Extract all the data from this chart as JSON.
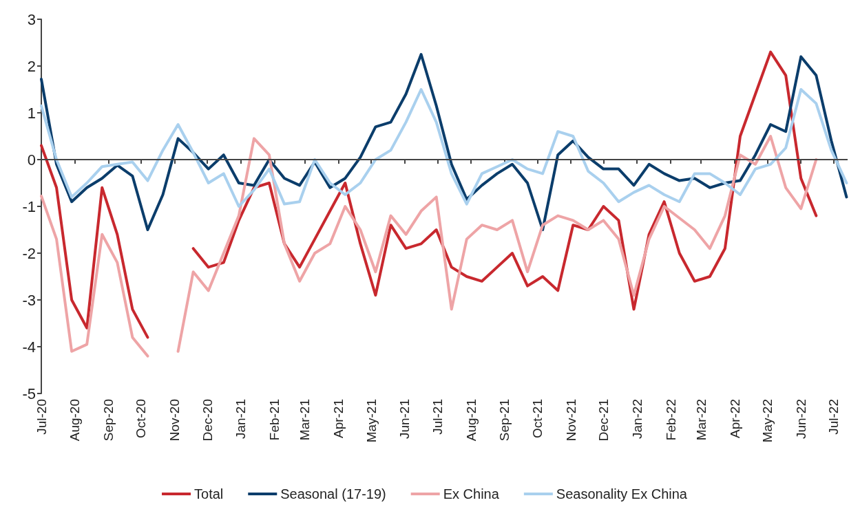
{
  "chart_data": {
    "type": "line",
    "x": [
      "2020-07-01",
      "2020-07-15",
      "2020-07-29",
      "2020-08-12",
      "2020-08-26",
      "2020-09-09",
      "2020-09-23",
      "2020-10-07",
      "2020-10-21",
      "2020-11-04",
      "2020-11-18",
      "2020-12-02",
      "2020-12-16",
      "2020-12-30",
      "2021-01-13",
      "2021-01-27",
      "2021-02-10",
      "2021-02-24",
      "2021-03-10",
      "2021-03-24",
      "2021-04-07",
      "2021-04-21",
      "2021-05-05",
      "2021-05-19",
      "2021-06-02",
      "2021-06-16",
      "2021-06-30",
      "2021-07-14",
      "2021-07-28",
      "2021-08-11",
      "2021-08-25",
      "2021-09-08",
      "2021-09-22",
      "2021-10-06",
      "2021-10-20",
      "2021-11-03",
      "2021-11-17",
      "2021-12-01",
      "2021-12-15",
      "2021-12-29",
      "2022-01-12",
      "2022-01-26",
      "2022-02-09",
      "2022-02-23",
      "2022-03-09",
      "2022-03-23",
      "2022-04-06",
      "2022-04-20",
      "2022-05-04",
      "2022-05-18",
      "2022-06-01",
      "2022-06-15",
      "2022-06-29",
      "2022-07-13"
    ],
    "series": [
      {
        "name": "Total",
        "color": "#c8282e",
        "values": [
          0.3,
          -0.6,
          -3.0,
          -3.6,
          -0.6,
          -1.6,
          -3.2,
          -3.8,
          null,
          null,
          -1.9,
          -2.3,
          -2.2,
          -1.3,
          -0.6,
          -0.5,
          -1.8,
          -2.3,
          -1.7,
          -1.1,
          -0.5,
          -1.8,
          -2.9,
          -1.4,
          -1.9,
          -1.8,
          -1.5,
          -2.3,
          -2.5,
          -2.6,
          -2.3,
          -2.0,
          -2.7,
          -2.5,
          -2.8,
          -1.4,
          -1.5,
          -1.0,
          -1.3,
          -3.2,
          -1.6,
          -0.9,
          -2.0,
          -2.6,
          -2.5,
          -1.9,
          0.5,
          1.4,
          2.3,
          1.8,
          -0.4,
          -1.2,
          null,
          null
        ]
      },
      {
        "name": "Seasonal (17-19)",
        "color": "#0b3d6b",
        "values": [
          1.72,
          -0.1,
          -0.9,
          -0.6,
          -0.4,
          -0.12,
          -0.35,
          -1.5,
          -0.75,
          0.45,
          0.15,
          -0.2,
          0.1,
          -0.5,
          -0.55,
          0.0,
          -0.4,
          -0.55,
          -0.05,
          -0.6,
          -0.4,
          0.05,
          0.7,
          0.8,
          1.4,
          2.25,
          1.15,
          -0.1,
          -0.85,
          -0.55,
          -0.3,
          -0.1,
          -0.5,
          -1.5,
          0.1,
          0.4,
          0.05,
          -0.2,
          -0.2,
          -0.55,
          -0.1,
          -0.3,
          -0.45,
          -0.4,
          -0.6,
          -0.5,
          -0.45,
          0.1,
          0.75,
          0.6,
          2.2,
          1.8,
          0.4,
          -0.8
        ]
      },
      {
        "name": "Ex China",
        "color": "#eea4a6",
        "values": [
          -0.78,
          -1.7,
          -4.1,
          -3.95,
          -1.6,
          -2.2,
          -3.8,
          -4.2,
          null,
          -4.1,
          -2.4,
          -2.8,
          -2.0,
          -1.2,
          0.45,
          0.1,
          -1.8,
          -2.6,
          -2.0,
          -1.8,
          -1.0,
          -1.5,
          -2.4,
          -1.2,
          -1.6,
          -1.1,
          -0.8,
          -3.2,
          -1.7,
          -1.4,
          -1.5,
          -1.3,
          -2.4,
          -1.4,
          -1.2,
          -1.3,
          -1.5,
          -1.3,
          -1.7,
          -2.9,
          -1.7,
          -1.0,
          -1.25,
          -1.5,
          -1.9,
          -1.2,
          0.1,
          -0.1,
          0.5,
          -0.6,
          -1.05,
          0.0,
          null,
          null
        ]
      },
      {
        "name": "Seasonality Ex China",
        "color": "#a9d0ee",
        "values": [
          1.15,
          0.0,
          -0.8,
          -0.5,
          -0.15,
          -0.1,
          -0.05,
          -0.45,
          0.2,
          0.75,
          0.15,
          -0.5,
          -0.3,
          -1.0,
          -0.65,
          -0.2,
          -0.95,
          -0.9,
          0.0,
          -0.5,
          -0.75,
          -0.5,
          0.0,
          0.2,
          0.8,
          1.5,
          0.8,
          -0.3,
          -0.95,
          -0.3,
          -0.15,
          0.0,
          -0.2,
          -0.3,
          0.6,
          0.5,
          -0.25,
          -0.5,
          -0.9,
          -0.7,
          -0.55,
          -0.75,
          -0.9,
          -0.3,
          -0.3,
          -0.5,
          -0.75,
          -0.2,
          -0.1,
          0.25,
          1.5,
          1.2,
          0.2,
          -0.5
        ]
      }
    ],
    "xlim": [
      "2020-07-01",
      "2022-07-14"
    ],
    "xticks": [
      {
        "value": "2020-07-01",
        "label": "Jul-20"
      },
      {
        "value": "2020-08-01",
        "label": "Aug-20"
      },
      {
        "value": "2020-09-01",
        "label": "Sep-20"
      },
      {
        "value": "2020-10-01",
        "label": "Oct-20"
      },
      {
        "value": "2020-11-01",
        "label": "Nov-20"
      },
      {
        "value": "2020-12-01",
        "label": "Dec-20"
      },
      {
        "value": "2021-01-01",
        "label": "Jan-21"
      },
      {
        "value": "2021-02-01",
        "label": "Feb-21"
      },
      {
        "value": "2021-03-01",
        "label": "Mar-21"
      },
      {
        "value": "2021-04-01",
        "label": "Apr-21"
      },
      {
        "value": "2021-05-01",
        "label": "May-21"
      },
      {
        "value": "2021-06-01",
        "label": "Jun-21"
      },
      {
        "value": "2021-07-01",
        "label": "Jul-21"
      },
      {
        "value": "2021-08-01",
        "label": "Aug-21"
      },
      {
        "value": "2021-09-01",
        "label": "Sep-21"
      },
      {
        "value": "2021-10-01",
        "label": "Oct-21"
      },
      {
        "value": "2021-11-01",
        "label": "Nov-21"
      },
      {
        "value": "2021-12-01",
        "label": "Dec-21"
      },
      {
        "value": "2022-01-01",
        "label": "Jan-22"
      },
      {
        "value": "2022-02-01",
        "label": "Feb-22"
      },
      {
        "value": "2022-03-01",
        "label": "Mar-22"
      },
      {
        "value": "2022-04-01",
        "label": "Apr-22"
      },
      {
        "value": "2022-05-01",
        "label": "May-22"
      },
      {
        "value": "2022-06-01",
        "label": "Jun-22"
      },
      {
        "value": "2022-07-01",
        "label": "Jul-22"
      }
    ],
    "ylim": [
      -5,
      3
    ],
    "yticks": [
      -5,
      -4,
      -3,
      -2,
      -1,
      0,
      1,
      2,
      3
    ],
    "ref_lines": [
      {
        "axis": "y",
        "value": 0,
        "color": "#444444",
        "line_style": "solid"
      }
    ],
    "grid": false,
    "legend": "bottom",
    "marker": "none",
    "line_style": "solid"
  }
}
